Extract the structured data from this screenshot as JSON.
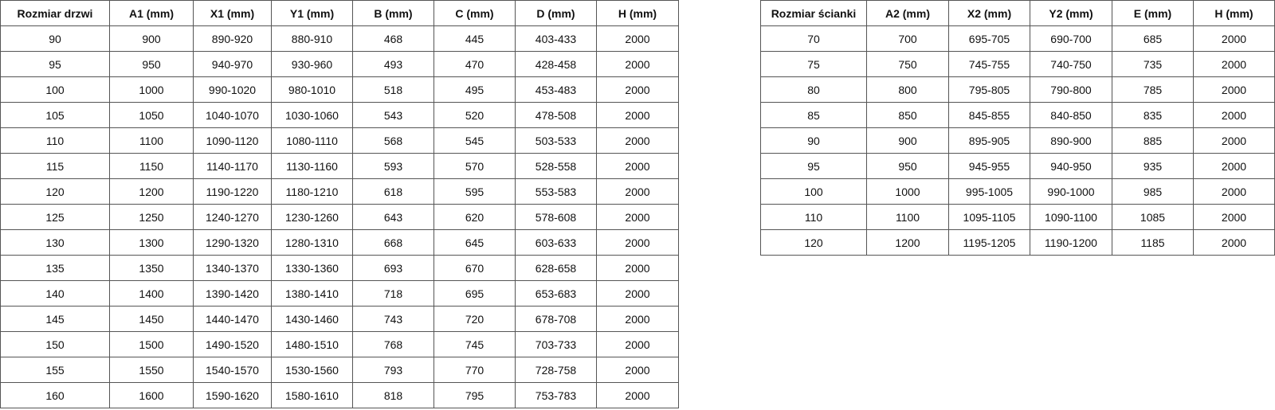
{
  "door_table": {
    "headers": [
      "Rozmiar drzwi",
      "A1 (mm)",
      "X1 (mm)",
      "Y1 (mm)",
      "B (mm)",
      "C (mm)",
      "D (mm)",
      "H (mm)"
    ],
    "rows": [
      [
        "90",
        "900",
        "890-920",
        "880-910",
        "468",
        "445",
        "403-433",
        "2000"
      ],
      [
        "95",
        "950",
        "940-970",
        "930-960",
        "493",
        "470",
        "428-458",
        "2000"
      ],
      [
        "100",
        "1000",
        "990-1020",
        "980-1010",
        "518",
        "495",
        "453-483",
        "2000"
      ],
      [
        "105",
        "1050",
        "1040-1070",
        "1030-1060",
        "543",
        "520",
        "478-508",
        "2000"
      ],
      [
        "110",
        "1100",
        "1090-1120",
        "1080-1110",
        "568",
        "545",
        "503-533",
        "2000"
      ],
      [
        "115",
        "1150",
        "1140-1170",
        "1130-1160",
        "593",
        "570",
        "528-558",
        "2000"
      ],
      [
        "120",
        "1200",
        "1190-1220",
        "1180-1210",
        "618",
        "595",
        "553-583",
        "2000"
      ],
      [
        "125",
        "1250",
        "1240-1270",
        "1230-1260",
        "643",
        "620",
        "578-608",
        "2000"
      ],
      [
        "130",
        "1300",
        "1290-1320",
        "1280-1310",
        "668",
        "645",
        "603-633",
        "2000"
      ],
      [
        "135",
        "1350",
        "1340-1370",
        "1330-1360",
        "693",
        "670",
        "628-658",
        "2000"
      ],
      [
        "140",
        "1400",
        "1390-1420",
        "1380-1410",
        "718",
        "695",
        "653-683",
        "2000"
      ],
      [
        "145",
        "1450",
        "1440-1470",
        "1430-1460",
        "743",
        "720",
        "678-708",
        "2000"
      ],
      [
        "150",
        "1500",
        "1490-1520",
        "1480-1510",
        "768",
        "745",
        "703-733",
        "2000"
      ],
      [
        "155",
        "1550",
        "1540-1570",
        "1530-1560",
        "793",
        "770",
        "728-758",
        "2000"
      ],
      [
        "160",
        "1600",
        "1590-1620",
        "1580-1610",
        "818",
        "795",
        "753-783",
        "2000"
      ]
    ]
  },
  "wall_table": {
    "headers": [
      "Rozmiar ścianki",
      "A2 (mm)",
      "X2 (mm)",
      "Y2 (mm)",
      "E (mm)",
      "H (mm)"
    ],
    "rows": [
      [
        "70",
        "700",
        "695-705",
        "690-700",
        "685",
        "2000"
      ],
      [
        "75",
        "750",
        "745-755",
        "740-750",
        "735",
        "2000"
      ],
      [
        "80",
        "800",
        "795-805",
        "790-800",
        "785",
        "2000"
      ],
      [
        "85",
        "850",
        "845-855",
        "840-850",
        "835",
        "2000"
      ],
      [
        "90",
        "900",
        "895-905",
        "890-900",
        "885",
        "2000"
      ],
      [
        "95",
        "950",
        "945-955",
        "940-950",
        "935",
        "2000"
      ],
      [
        "100",
        "1000",
        "995-1005",
        "990-1000",
        "985",
        "2000"
      ],
      [
        "110",
        "1100",
        "1095-1105",
        "1090-1100",
        "1085",
        "2000"
      ],
      [
        "120",
        "1200",
        "1195-1205",
        "1190-1200",
        "1185",
        "2000"
      ]
    ]
  }
}
